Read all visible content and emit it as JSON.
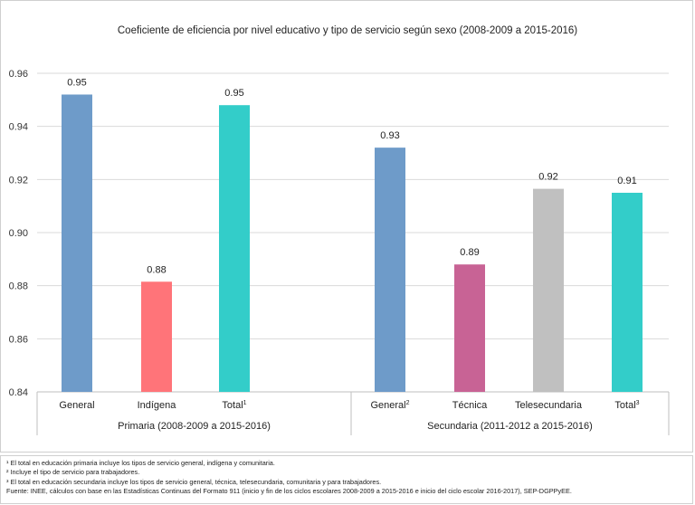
{
  "chart_data": {
    "type": "bar",
    "title": "Coeficiente de eficiencia por nivel educativo y tipo de servicio según sexo (2008-2009 a 2015-2016)",
    "ylim": [
      0.84,
      0.96
    ],
    "yticks": [
      "0.84",
      "0.86",
      "0.88",
      "0.90",
      "0.92",
      "0.94",
      "0.96"
    ],
    "grid": true,
    "groups": [
      {
        "name": "Primaria (2008-2009 a 2015-2016)",
        "bars": [
          {
            "label": "General",
            "sup": "",
            "value": 0.952,
            "display": "0.95",
            "color": "#6e9bc9"
          },
          {
            "label": "Indígena",
            "sup": "",
            "value": 0.8815,
            "display": "0.88",
            "color": "#ff7479"
          },
          {
            "label": "Total",
            "sup": "1",
            "value": 0.948,
            "display": "0.95",
            "color": "#33cdc9"
          }
        ]
      },
      {
        "name": "Secundaria (2011-2012 a 2015-2016)",
        "bars": [
          {
            "label": "General",
            "sup": "2",
            "value": 0.932,
            "display": "0.93",
            "color": "#6e9bc9"
          },
          {
            "label": "Técnica",
            "sup": "",
            "value": 0.888,
            "display": "0.89",
            "color": "#c86395"
          },
          {
            "label": "Telesecundaria",
            "sup": "",
            "value": 0.9165,
            "display": "0.92",
            "color": "#c0c0c0"
          },
          {
            "label": "Total",
            "sup": "3",
            "value": 0.915,
            "display": "0.91",
            "color": "#33cdc9"
          }
        ]
      }
    ]
  },
  "footnotes": [
    "¹ El total en educación primaria incluye los tipos de servicio general, indígena y comunitaria.",
    "² Incluye el tipo de servicio para trabajadores.",
    "³ El total en educación secundaria incluye los tipos de servicio general, técnica, telesecundaria, comunitaria y para trabajadores.",
    "Fuente: INEE, cálculos con base en las Estadísticas Continuas del Formato 911 (inicio y fin de los ciclos escolares 2008-2009 a 2015-2016 e inicio del ciclo escolar 2016-2017), SEP-DGPPyEE."
  ]
}
